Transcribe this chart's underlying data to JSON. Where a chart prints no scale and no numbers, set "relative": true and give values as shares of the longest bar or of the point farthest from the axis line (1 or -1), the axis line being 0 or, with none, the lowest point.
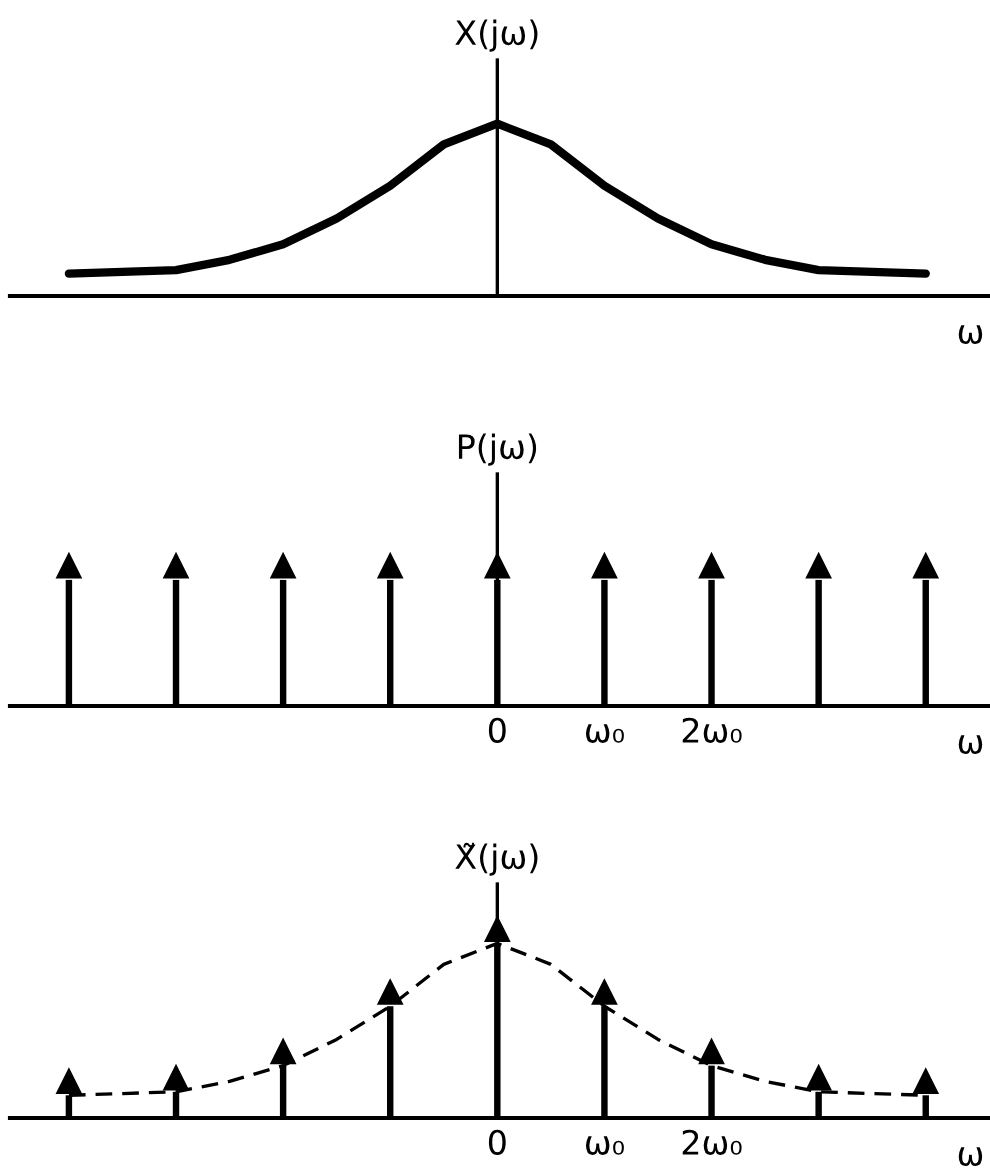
{
  "chart_data": [
    {
      "type": "line",
      "relative": true,
      "ylabel": "X(jω)",
      "xlabel": "ω",
      "tick_labels": false,
      "categories": [
        null,
        null,
        null,
        null,
        null,
        null,
        null,
        null,
        null,
        null,
        null,
        null,
        null,
        null,
        null,
        null,
        null
      ],
      "series": [
        {
          "color": "#000000",
          "values": [
            0.13,
            0.14,
            0.15,
            0.21,
            0.3,
            0.45,
            0.64,
            0.88,
            1,
            0.88,
            0.64,
            0.45,
            0.3,
            0.21,
            0.15,
            0.14,
            0.13
          ]
        }
      ]
    },
    {
      "type": "bar",
      "relative": true,
      "ylabel": "P(jω)",
      "xlabel": "ω",
      "tick_labels": "x",
      "x": [
        -4,
        -3,
        -2,
        -1,
        0,
        1,
        2,
        3,
        4
      ],
      "xlim": [
        -4.55,
        4.6
      ],
      "xticks": [
        {
          "value": 0,
          "label": "0"
        },
        {
          "value": 1,
          "label": "ω₀"
        },
        {
          "value": 2,
          "label": "2ω₀"
        }
      ],
      "series": [
        {
          "color": "#000000",
          "values": [
            1,
            1,
            1,
            1,
            1,
            1,
            1,
            1,
            1
          ]
        }
      ]
    },
    {
      "type": "bar",
      "relative": true,
      "ylabel": "X̃(jω)",
      "xlabel": "ω",
      "tick_labels": "x",
      "x": [
        -4,
        -3,
        -2,
        -1,
        0,
        1,
        2,
        3,
        4
      ],
      "xlim": [
        -4.55,
        4.6
      ],
      "xticks": [
        {
          "value": 0,
          "label": "0"
        },
        {
          "value": 1,
          "label": "ω₀"
        },
        {
          "value": 2,
          "label": "2ω₀"
        }
      ],
      "series": [
        {
          "color": "#000000",
          "values": [
            0.13,
            0.15,
            0.3,
            0.64,
            1,
            0.64,
            0.3,
            0.15,
            0.13
          ]
        },
        {
          "type": "line",
          "line_style": "dashed",
          "color": "#000000",
          "x": [
            -4,
            -3.5,
            -3,
            -2.5,
            -2,
            -1.5,
            -1,
            -0.5,
            0,
            0.5,
            1,
            1.5,
            2,
            2.5,
            3,
            3.5,
            4
          ],
          "values": [
            0.13,
            0.14,
            0.15,
            0.21,
            0.3,
            0.45,
            0.64,
            0.88,
            1,
            0.88,
            0.64,
            0.45,
            0.3,
            0.21,
            0.15,
            0.14,
            0.13
          ]
        }
      ]
    }
  ]
}
